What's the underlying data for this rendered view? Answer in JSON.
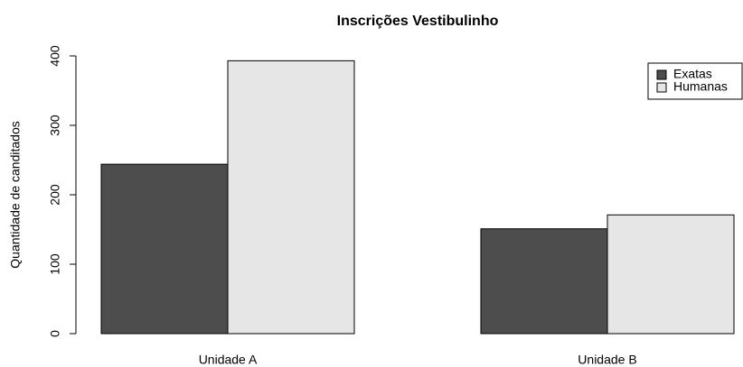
{
  "chart_data": {
    "type": "bar",
    "title": "Inscrições Vestibulinho",
    "y_label": "Quantidade de canditados",
    "categories": [
      "Unidade A",
      "Unidade B"
    ],
    "series": [
      {
        "name": "Exatas",
        "color": "#4d4d4d",
        "values": [
          244,
          151
        ]
      },
      {
        "name": "Humanas",
        "color": "#e6e6e6",
        "values": [
          393,
          171
        ]
      }
    ],
    "ylim": [
      0,
      400
    ],
    "yticks": [
      0,
      100,
      200,
      300,
      400
    ],
    "legend": "top-right"
  }
}
